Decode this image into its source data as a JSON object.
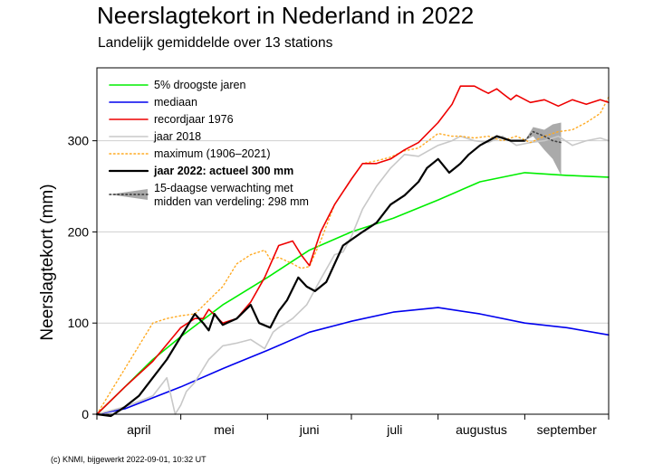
{
  "title": "Neerslagtekort in Nederland in 2022",
  "subtitle": "Landelijk gemiddelde over 13 stations",
  "footer": "(c) KNMI, bijgewerkt 2022-09-01, 10:32 UT",
  "chart_data": {
    "type": "line",
    "title": "Neerslagtekort in Nederland in 2022",
    "subtitle": "Landelijk gemiddelde over 13 stations",
    "xlabel": "",
    "ylabel": "Neerslagtekort (mm)",
    "xlim": [
      0,
      183
    ],
    "ylim": [
      0,
      380
    ],
    "yticks": [
      0,
      100,
      200,
      300
    ],
    "grid": "horizontal",
    "x_unit": "days since 1 april",
    "month_labels": [
      {
        "label": "april",
        "center": 15
      },
      {
        "label": "mei",
        "center": 45.5
      },
      {
        "label": "juni",
        "center": 76
      },
      {
        "label": "juli",
        "center": 106.5
      },
      {
        "label": "augustus",
        "center": 137.5
      },
      {
        "label": "september",
        "center": 168
      }
    ],
    "month_starts": [
      0,
      30,
      61,
      91,
      122,
      153,
      183
    ],
    "series": [
      {
        "name": "5% droogste jaren",
        "color": "#00ee00",
        "width": 1.6,
        "x": [
          0,
          10,
          20,
          30,
          45,
          61,
          76,
          91,
          106,
          122,
          137,
          153,
          168,
          183
        ],
        "y": [
          0,
          30,
          60,
          85,
          120,
          150,
          180,
          200,
          215,
          235,
          255,
          265,
          262,
          260
        ]
      },
      {
        "name": "mediaan",
        "color": "#0000ee",
        "width": 1.6,
        "x": [
          0,
          10,
          20,
          30,
          45,
          61,
          76,
          91,
          106,
          122,
          137,
          153,
          168,
          183
        ],
        "y": [
          0,
          6,
          18,
          30,
          50,
          70,
          90,
          102,
          112,
          117,
          110,
          100,
          95,
          87
        ]
      },
      {
        "name": "recordjaar 1976",
        "color": "#ee0000",
        "width": 1.6,
        "x": [
          0,
          10,
          20,
          30,
          35,
          38,
          40,
          45,
          50,
          55,
          60,
          65,
          70,
          73,
          76,
          80,
          85,
          91,
          95,
          100,
          105,
          110,
          115,
          122,
          127,
          130,
          135,
          138,
          140,
          143,
          145,
          148,
          150,
          155,
          160,
          165,
          170,
          175,
          180,
          183
        ],
        "y": [
          0,
          30,
          58,
          95,
          105,
          105,
          115,
          100,
          105,
          123,
          150,
          185,
          190,
          175,
          163,
          200,
          230,
          258,
          275,
          275,
          280,
          290,
          298,
          320,
          340,
          360,
          360,
          355,
          352,
          357,
          352,
          345,
          350,
          342,
          345,
          338,
          345,
          340,
          345,
          342
        ]
      },
      {
        "name": "jaar 2018",
        "color": "#c8c8c8",
        "width": 1.6,
        "x": [
          0,
          10,
          20,
          25,
          28,
          30,
          32,
          35,
          40,
          45,
          50,
          55,
          60,
          63,
          65,
          70,
          75,
          80,
          85,
          88,
          91,
          95,
          100,
          105,
          110,
          115,
          122,
          127,
          130,
          135,
          140,
          145,
          150,
          155,
          160,
          165,
          170,
          175,
          180,
          183
        ],
        "y": [
          0,
          8,
          20,
          40,
          0,
          10,
          25,
          35,
          60,
          75,
          78,
          82,
          72,
          90,
          95,
          105,
          120,
          148,
          175,
          178,
          195,
          225,
          250,
          270,
          285,
          283,
          295,
          300,
          305,
          300,
          298,
          305,
          295,
          298,
          300,
          305,
          295,
          300,
          303,
          300
        ]
      },
      {
        "name": "maximum (1906–2021)",
        "color": "#ffaa22",
        "width": 1.4,
        "dash": "1.5 3",
        "x": [
          0,
          5,
          10,
          15,
          20,
          25,
          30,
          35,
          40,
          45,
          50,
          55,
          60,
          62,
          65,
          70,
          73,
          76,
          80,
          85,
          91,
          95,
          100,
          105,
          110,
          115,
          122,
          127,
          130,
          135,
          140,
          145,
          150,
          155,
          160,
          165,
          170,
          175,
          180,
          183
        ],
        "y": [
          0,
          25,
          50,
          75,
          100,
          105,
          108,
          110,
          125,
          140,
          165,
          175,
          180,
          170,
          172,
          165,
          160,
          162,
          190,
          230,
          258,
          275,
          278,
          282,
          289,
          292,
          308,
          305,
          305,
          303,
          305,
          300,
          305,
          298,
          305,
          310,
          312,
          320,
          330,
          348
        ]
      },
      {
        "name": "jaar 2022: actueel 300 mm",
        "color": "#000000",
        "width": 2.2,
        "x": [
          0,
          5,
          10,
          15,
          20,
          25,
          30,
          35,
          38,
          40,
          42,
          45,
          50,
          55,
          58,
          62,
          65,
          68,
          72,
          75,
          78,
          82,
          88,
          95,
          100,
          105,
          110,
          115,
          118,
          122,
          126,
          128,
          130,
          133,
          137,
          143,
          148,
          153
        ],
        "y": [
          0,
          -2,
          8,
          20,
          40,
          60,
          85,
          110,
          100,
          92,
          110,
          98,
          105,
          120,
          100,
          95,
          113,
          125,
          150,
          140,
          135,
          145,
          185,
          200,
          210,
          230,
          240,
          255,
          270,
          280,
          265,
          270,
          275,
          285,
          295,
          305,
          300,
          300
        ]
      },
      {
        "name": "15-daagse verwachting met midden van verdeling: 298 mm",
        "color": "#444444",
        "width": 1.6,
        "dash": "1.5 3",
        "x": [
          153,
          156,
          160,
          163,
          166
        ],
        "y": [
          300,
          310,
          305,
          300,
          298
        ]
      }
    ],
    "forecast_band": {
      "x": [
        153,
        156,
        160,
        163,
        166
      ],
      "low": [
        300,
        305,
        290,
        280,
        262
      ],
      "high": [
        300,
        315,
        312,
        318,
        320
      ],
      "color": "#aaaaaa"
    },
    "legend": {
      "position": "top-left",
      "entries": [
        {
          "label": "5% droogste jaren",
          "color": "#00ee00",
          "style": "solid"
        },
        {
          "label": "mediaan",
          "color": "#0000ee",
          "style": "solid"
        },
        {
          "label": "recordjaar 1976",
          "color": "#ee0000",
          "style": "solid"
        },
        {
          "label": "jaar 2018",
          "color": "#c8c8c8",
          "style": "solid"
        },
        {
          "label": "maximum (1906–2021)",
          "color": "#ffaa22",
          "style": "dotted"
        },
        {
          "label": "jaar 2022: actueel 300 mm",
          "color": "#000000",
          "style": "solid",
          "bold": true
        },
        {
          "label": "15-daagse verwachting met",
          "label2": "midden van verdeling: 298 mm",
          "color": "#aaaaaa",
          "style": "band"
        }
      ]
    }
  }
}
